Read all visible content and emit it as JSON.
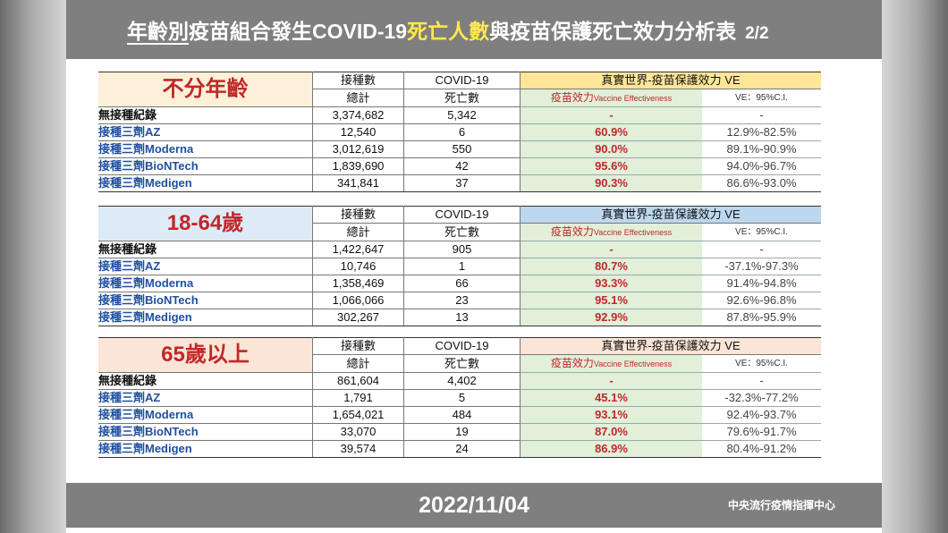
{
  "title": {
    "prefix": "年齡別",
    "mid1": "疫苗組合發生COVID-19",
    "highlight": "死亡人數",
    "mid2": "與疫苗保護死亡效力分析表",
    "page": "2/2"
  },
  "headers": {
    "col_n_top": "接種數",
    "col_n_bottom": "總計",
    "col_d_top": "COVID-19",
    "col_d_bottom": "死亡數",
    "ve_title": "真實世界-疫苗保護效力 VE",
    "ve_label": "疫苗效力",
    "ve_label_en": "Vaccine Effectiveness",
    "ci_label": "VE：95%C.I."
  },
  "blocks": [
    {
      "age": "不分年齡",
      "rows": [
        {
          "label": "無接種紀錄",
          "n": "3,374,682",
          "d": "5,342",
          "ve": "-",
          "ci": "-"
        },
        {
          "label": "接種三劑AZ",
          "n": "12,540",
          "d": "6",
          "ve": "60.9%",
          "ci": "12.9%-82.5%"
        },
        {
          "label": "接種三劑Moderna",
          "n": "3,012,619",
          "d": "550",
          "ve": "90.0%",
          "ci": "89.1%-90.9%"
        },
        {
          "label": "接種三劑BioNTech",
          "n": "1,839,690",
          "d": "42",
          "ve": "95.6%",
          "ci": "94.0%-96.7%"
        },
        {
          "label": "接種三劑Medigen",
          "n": "341,841",
          "d": "37",
          "ve": "90.3%",
          "ci": "86.6%-93.0%"
        }
      ]
    },
    {
      "age": "18-64歲",
      "rows": [
        {
          "label": "無接種紀錄",
          "n": "1,422,647",
          "d": "905",
          "ve": "-",
          "ci": "-"
        },
        {
          "label": "接種三劑AZ",
          "n": "10,746",
          "d": "1",
          "ve": "80.7%",
          "ci": "-37.1%-97.3%"
        },
        {
          "label": "接種三劑Moderna",
          "n": "1,358,469",
          "d": "66",
          "ve": "93.3%",
          "ci": "91.4%-94.8%"
        },
        {
          "label": "接種三劑BioNTech",
          "n": "1,066,066",
          "d": "23",
          "ve": "95.1%",
          "ci": "92.6%-96.8%"
        },
        {
          "label": "接種三劑Medigen",
          "n": "302,267",
          "d": "13",
          "ve": "92.9%",
          "ci": "87.8%-95.9%"
        }
      ]
    },
    {
      "age": "65歲以上",
      "rows": [
        {
          "label": "無接種紀錄",
          "n": "861,604",
          "d": "4,402",
          "ve": "-",
          "ci": "-"
        },
        {
          "label": "接種三劑AZ",
          "n": "1,791",
          "d": "5",
          "ve": "45.1%",
          "ci": "-32.3%-77.2%"
        },
        {
          "label": "接種三劑Moderna",
          "n": "1,654,021",
          "d": "484",
          "ve": "93.1%",
          "ci": "92.4%-93.7%"
        },
        {
          "label": "接種三劑BioNTech",
          "n": "33,070",
          "d": "19",
          "ve": "87.0%",
          "ci": "79.6%-91.7%"
        },
        {
          "label": "接種三劑Medigen",
          "n": "39,574",
          "d": "24",
          "ve": "86.9%",
          "ci": "80.4%-91.2%"
        }
      ]
    }
  ],
  "footer": {
    "date": "2022/11/04",
    "org": "中央流行疫情指揮中心"
  },
  "colors": {
    "title_highlight": "#ffe94a",
    "age_label": "#c0282a",
    "vaccinated_label": "#1f4fa0",
    "ve_fill": "#e2efd9",
    "block1_header": "#ffe699",
    "block2_header": "#bdd7ee",
    "block3_header": "#fbe5d6"
  }
}
